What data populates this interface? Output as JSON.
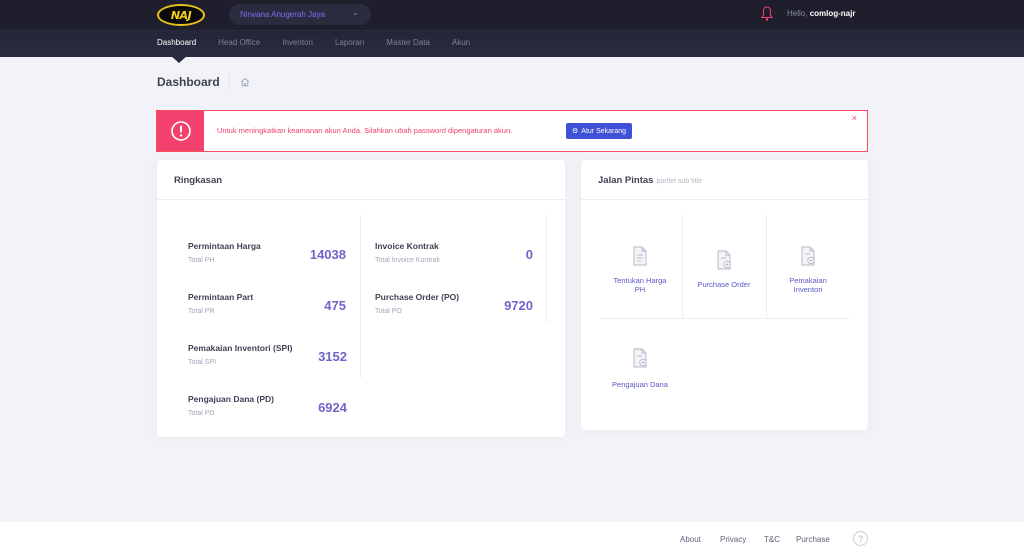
{
  "header": {
    "logo_text": "NAJ",
    "company": "Nirwana Anugerah Jaya",
    "greeting": "Hello,",
    "username": "comlog-najr",
    "nav": [
      "Dashboard",
      "Head Office",
      "Inventori",
      "Laporan",
      "Master Data",
      "Akun"
    ]
  },
  "subheader": {
    "title": "Dashboard"
  },
  "alert": {
    "message": "Untuk meningkatkan keamanan akun Anda. Silahkan ubah password dipengaturan akun.",
    "button": "Atur Sekarang",
    "close": "×",
    "color": "#f1416c"
  },
  "summary": {
    "title": "Ringkasan",
    "stats": [
      {
        "label": "Permintaan Harga",
        "sub": "Total PH",
        "value": "14038"
      },
      {
        "label": "Invoice Kontrak",
        "sub": "Total Invoice Kontrak",
        "value": "0"
      },
      {
        "label": "Permintaan Part",
        "sub": "Total PR",
        "value": "475"
      },
      {
        "label": "Purchase Order (PO)",
        "sub": "Total PO",
        "value": "9720"
      },
      {
        "label": "Pemakaian Inventori (SPI)",
        "sub": "Total SPI",
        "value": "3152"
      },
      {
        "label": "Pengajuan Dana (PD)",
        "sub": "Total PD",
        "value": "6924"
      }
    ]
  },
  "shortcuts": {
    "title": "Jalan Pintas",
    "subtitle": "portlet sub title",
    "items": [
      {
        "line1": "Tentukan Harga",
        "line2": "PH",
        "icon": "document-list-icon"
      },
      {
        "line1": "Purchase Order",
        "line2": "",
        "icon": "document-add-icon"
      },
      {
        "line1": "Pemakaian",
        "line2": "Inventori",
        "icon": "document-add-icon"
      },
      {
        "line1": "Pengajuan Dana",
        "line2": "",
        "icon": "document-add-icon"
      }
    ]
  },
  "footer": {
    "links": [
      "About",
      "Privacy",
      "T&C",
      "Purchase"
    ],
    "help": "?"
  },
  "colors": {
    "accent": "#7066c9",
    "header_bg": "#1e1e2d",
    "button": "#3f51d6"
  }
}
